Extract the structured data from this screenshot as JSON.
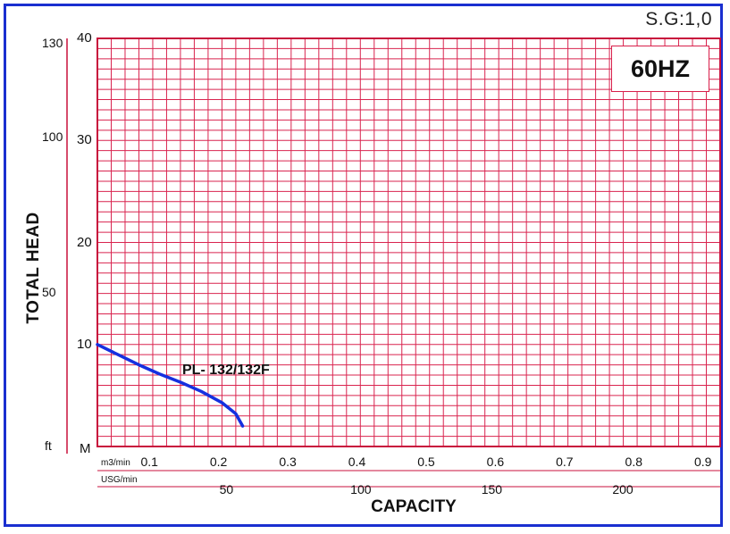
{
  "chart_data": {
    "type": "line",
    "title": "",
    "specific_gravity_label": "S.G:1,0",
    "frequency_label": "60HZ",
    "ylabel": "TOTAL  HEAD",
    "xlabel": "CAPACITY",
    "y_unit_m": "M",
    "y_unit_ft": "ft",
    "x_unit_m3": "m3/min",
    "x_unit_usg": "USG/min",
    "xlim": [
      0,
      0.9
    ],
    "ylim": [
      0,
      40
    ],
    "grid": true,
    "y_ticks_m": [
      "10",
      "20",
      "30",
      "40"
    ],
    "y_ticks_ft": [
      "50",
      "100",
      "130"
    ],
    "x_ticks_m3": [
      "0.1",
      "0.2",
      "0.3",
      "0.4",
      "0.5",
      "0.6",
      "0.7",
      "0.8",
      "0.9"
    ],
    "x_ticks_usg": [
      "50",
      "100",
      "150",
      "200"
    ],
    "series": [
      {
        "name": "PL- 132/132F",
        "color": "#1530e0",
        "x": [
          0.0,
          0.03,
          0.06,
          0.09,
          0.12,
          0.15,
          0.18,
          0.2,
          0.21
        ],
        "y": [
          10.0,
          9.0,
          8.0,
          7.1,
          6.3,
          5.4,
          4.3,
          3.2,
          2.0
        ]
      }
    ]
  }
}
